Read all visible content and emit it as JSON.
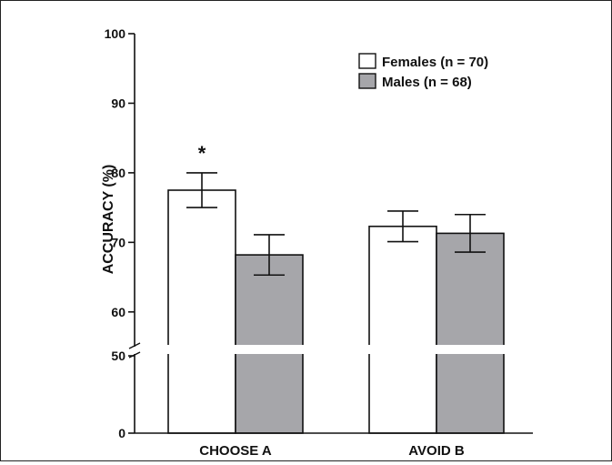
{
  "chart_data": {
    "type": "bar",
    "title": "",
    "xlabel": "",
    "ylabel": "ACCURACY (%)",
    "categories": [
      "CHOOSE A",
      "AVOID B"
    ],
    "series": [
      {
        "name": "Females (n = 70)",
        "values": [
          77.5,
          72.3
        ],
        "errors": [
          2.5,
          2.2
        ],
        "color": "#ffffff"
      },
      {
        "name": "Males (n = 68)",
        "values": [
          68.2,
          71.3
        ],
        "errors": [
          2.9,
          2.7
        ],
        "color": "#a6a6aa"
      }
    ],
    "yticks": [
      0,
      50,
      60,
      70,
      80,
      90,
      100
    ],
    "ylim": [
      0,
      100
    ],
    "axis_break": [
      50,
      55
    ],
    "legend_position": "top-right",
    "annotations": [
      {
        "text": "*",
        "category": "CHOOSE A",
        "series": "Females (n = 70)"
      }
    ],
    "grid": false
  }
}
